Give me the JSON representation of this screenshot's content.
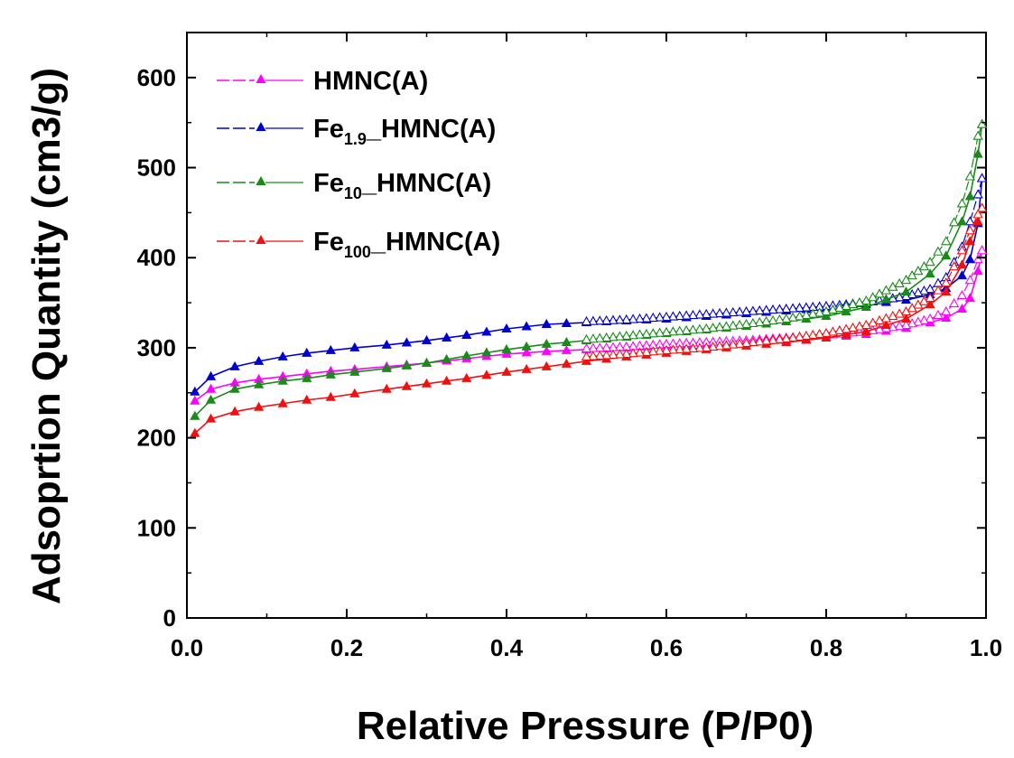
{
  "chart_data": {
    "type": "line",
    "xlabel": "Relative Pressure (P/P0)",
    "ylabel": "Adsoprtion Quantity (cm3/g)",
    "xlim": [
      0.0,
      1.0
    ],
    "ylim": [
      0,
      650
    ],
    "xticks": [
      "0.0",
      "0.2",
      "0.4",
      "0.6",
      "0.8",
      "1.0"
    ],
    "yticks": [
      "0",
      "100",
      "200",
      "300",
      "400",
      "500",
      "600"
    ],
    "grid": false,
    "legend_position": "top-left",
    "series": [
      {
        "name": "HMNC(A)",
        "legend_main": "HMNC(A)",
        "legend_sub": "",
        "legend_suffix": "",
        "color": "#ff00ff",
        "adsorption": {
          "x": [
            0.01,
            0.03,
            0.06,
            0.09,
            0.12,
            0.15,
            0.18,
            0.21,
            0.25,
            0.3,
            0.35,
            0.4,
            0.45,
            0.5,
            0.55,
            0.6,
            0.65,
            0.7,
            0.75,
            0.8,
            0.85,
            0.9,
            0.93,
            0.95,
            0.97,
            0.98,
            0.99,
            0.995
          ],
          "y": [
            241,
            254,
            261,
            265,
            268,
            271,
            274,
            276,
            279,
            283,
            288,
            293,
            296,
            298,
            300,
            302,
            304,
            306,
            308,
            311,
            315,
            322,
            328,
            333,
            343,
            355,
            385,
            408
          ]
        },
        "desorption": {
          "x": [
            0.995,
            0.99,
            0.98,
            0.97,
            0.95,
            0.93,
            0.9,
            0.85,
            0.8,
            0.75,
            0.7,
            0.65,
            0.6,
            0.55,
            0.5
          ],
          "y": [
            408,
            398,
            375,
            358,
            340,
            332,
            325,
            318,
            314,
            311,
            308,
            306,
            304,
            301,
            299
          ]
        }
      },
      {
        "name": "Fe1.9_HMNC(A)",
        "legend_main": "Fe",
        "legend_sub": "1.9",
        "legend_suffix": "_HMNC(A)",
        "color": "#0000cc",
        "adsorption": {
          "x": [
            0.01,
            0.03,
            0.06,
            0.09,
            0.12,
            0.15,
            0.18,
            0.21,
            0.25,
            0.3,
            0.35,
            0.4,
            0.45,
            0.5,
            0.55,
            0.6,
            0.65,
            0.7,
            0.75,
            0.8,
            0.85,
            0.9,
            0.93,
            0.95,
            0.97,
            0.98,
            0.99,
            0.995
          ],
          "y": [
            251,
            268,
            279,
            285,
            290,
            294,
            297,
            300,
            303,
            308,
            314,
            321,
            326,
            328,
            330,
            332,
            335,
            338,
            341,
            344,
            348,
            353,
            359,
            366,
            380,
            398,
            438,
            488
          ]
        },
        "desorption": {
          "x": [
            0.995,
            0.99,
            0.98,
            0.97,
            0.95,
            0.93,
            0.9,
            0.85,
            0.8,
            0.75,
            0.7,
            0.65,
            0.6,
            0.55,
            0.5
          ],
          "y": [
            488,
            470,
            440,
            412,
            378,
            365,
            357,
            350,
            346,
            343,
            340,
            337,
            334,
            331,
            329
          ]
        }
      },
      {
        "name": "Fe10_HMNC(A)",
        "legend_main": "Fe",
        "legend_sub": "10",
        "legend_suffix": "_HMNC(A)",
        "color": "#1a8a1a",
        "adsorption": {
          "x": [
            0.01,
            0.03,
            0.06,
            0.09,
            0.12,
            0.15,
            0.18,
            0.21,
            0.25,
            0.3,
            0.35,
            0.4,
            0.45,
            0.5,
            0.55,
            0.6,
            0.65,
            0.7,
            0.75,
            0.8,
            0.85,
            0.9,
            0.93,
            0.95,
            0.97,
            0.98,
            0.99,
            0.995
          ],
          "y": [
            224,
            242,
            254,
            259,
            263,
            266,
            270,
            273,
            277,
            283,
            291,
            298,
            304,
            308,
            312,
            316,
            320,
            324,
            329,
            335,
            345,
            362,
            382,
            402,
            440,
            468,
            515,
            548
          ]
        },
        "desorption": {
          "x": [
            0.995,
            0.99,
            0.98,
            0.97,
            0.95,
            0.93,
            0.9,
            0.85,
            0.8,
            0.75,
            0.7,
            0.65,
            0.6,
            0.55,
            0.5
          ],
          "y": [
            548,
            535,
            490,
            460,
            418,
            395,
            375,
            352,
            340,
            332,
            326,
            321,
            317,
            313,
            309
          ]
        }
      },
      {
        "name": "Fe100_HMNC(A)",
        "legend_main": "Fe",
        "legend_sub": "100",
        "legend_suffix": "_HMNC(A)",
        "color": "#ee1111",
        "adsorption": {
          "x": [
            0.01,
            0.03,
            0.06,
            0.09,
            0.12,
            0.15,
            0.18,
            0.21,
            0.25,
            0.3,
            0.35,
            0.4,
            0.45,
            0.5,
            0.55,
            0.6,
            0.65,
            0.7,
            0.75,
            0.8,
            0.85,
            0.9,
            0.93,
            0.95,
            0.97,
            0.98,
            0.99,
            0.995
          ],
          "y": [
            205,
            221,
            229,
            234,
            238,
            242,
            245,
            249,
            254,
            260,
            266,
            273,
            279,
            285,
            290,
            294,
            298,
            302,
            306,
            311,
            318,
            332,
            348,
            362,
            392,
            418,
            440,
            455
          ]
        },
        "desorption": {
          "x": [
            0.995,
            0.99,
            0.98,
            0.97,
            0.95,
            0.93,
            0.9,
            0.85,
            0.8,
            0.75,
            0.7,
            0.65,
            0.6,
            0.55,
            0.5
          ],
          "y": [
            455,
            448,
            430,
            408,
            372,
            355,
            340,
            325,
            316,
            310,
            305,
            300,
            297,
            293,
            290
          ]
        }
      }
    ]
  }
}
